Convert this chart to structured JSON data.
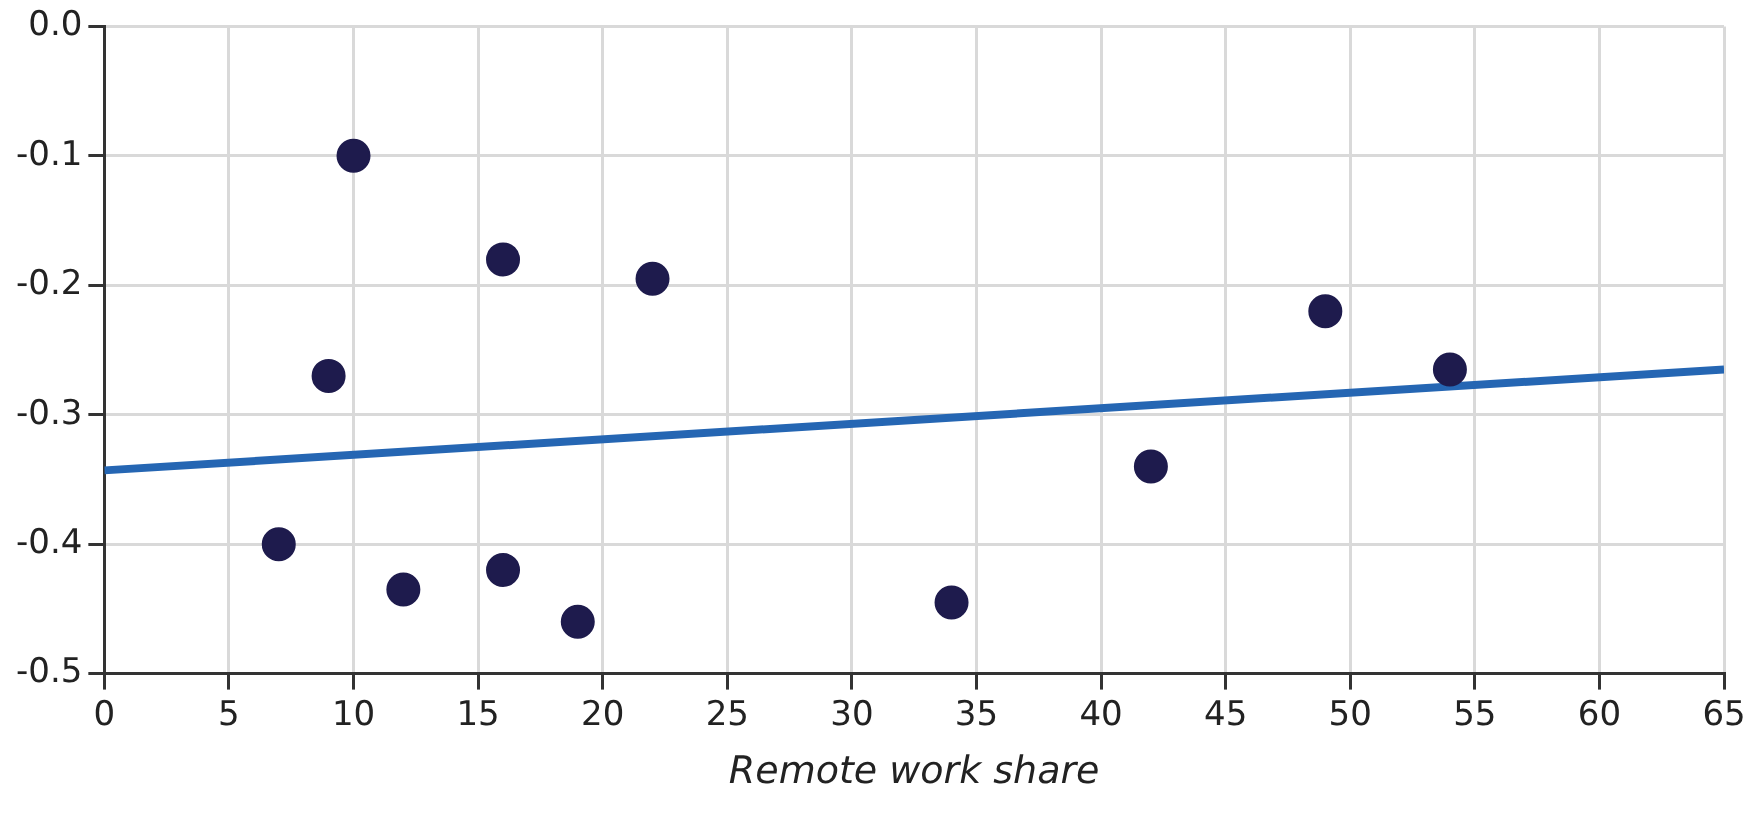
{
  "chart_data": {
    "type": "scatter",
    "xlabel": "Remote work share",
    "xlim": [
      0,
      65
    ],
    "xticks": [
      0,
      5,
      10,
      15,
      20,
      25,
      30,
      35,
      40,
      45,
      50,
      55,
      60,
      65
    ],
    "ylim": [
      -0.5,
      0
    ],
    "yticks": [
      -0.5,
      -0.4,
      -0.3,
      -0.2,
      -0.1,
      {
        "value": 0,
        "label": "0.0"
      }
    ],
    "grid": true,
    "legend": false,
    "marker": "circle",
    "series": [
      {
        "color": "#1e1b4d",
        "x": [
          7,
          9,
          10,
          12,
          16,
          16,
          19,
          22,
          34,
          42,
          49,
          54
        ],
        "values": [
          -0.4,
          -0.27,
          -0.1,
          -0.435,
          -0.18,
          -0.42,
          -0.46,
          -0.195,
          -0.445,
          -0.34,
          -0.22,
          -0.265
        ]
      },
      {
        "type": "line",
        "color": "#2566b3",
        "x": [
          0,
          65
        ],
        "values": [
          -0.343,
          -0.265
        ],
        "marker": "none",
        "line_style": "solid"
      }
    ]
  }
}
